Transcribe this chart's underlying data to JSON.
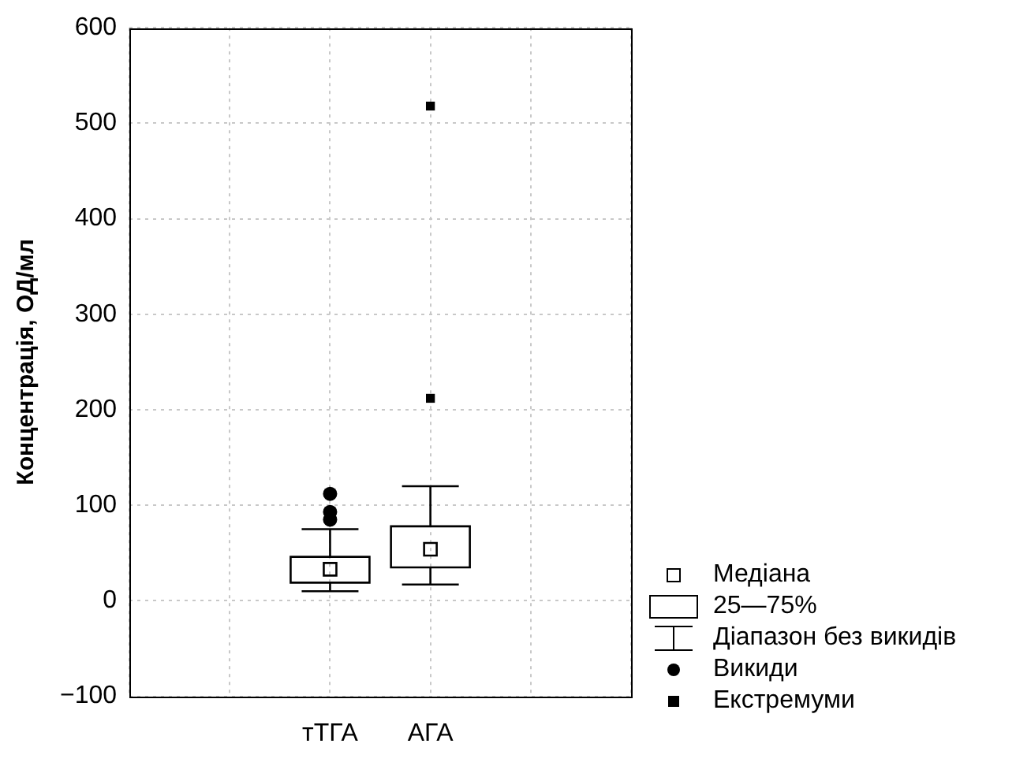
{
  "chart_data": {
    "type": "box",
    "ylabel": "Концентрація, ОД/мл",
    "categories": [
      null,
      null,
      "тТГА",
      "АГА",
      null,
      null
    ],
    "ylim": [
      -100,
      600
    ],
    "yticks": [
      {
        "value": -100,
        "label": "−100"
      },
      0,
      100,
      200,
      300,
      400,
      500,
      600
    ],
    "grid": true,
    "legend": "bottom right",
    "annotations": [
      "Медіана",
      "25—75%",
      "Діапазон без викидів"
    ],
    "series": [
      {
        "type": "box",
        "color": "#000000",
        "boxes": [
          null,
          null,
          {
            "low": 10,
            "q1": 19,
            "median": 33,
            "q3": 46,
            "high": 75
          },
          {
            "low": 17,
            "q1": 35,
            "median": 54,
            "q3": 78,
            "high": 120
          },
          null,
          null
        ]
      },
      {
        "type": "scatter",
        "name": "Викиди",
        "marker": "circle",
        "color": "#000000",
        "x": [
          "тТГА",
          "тТГА",
          "тТГА"
        ],
        "values": [
          112,
          93,
          85
        ]
      },
      {
        "type": "scatter",
        "name": "Екстремуми",
        "marker": "square",
        "color": "#000000",
        "x": [
          "АГА",
          "АГА"
        ],
        "values": [
          518,
          212
        ]
      }
    ]
  }
}
